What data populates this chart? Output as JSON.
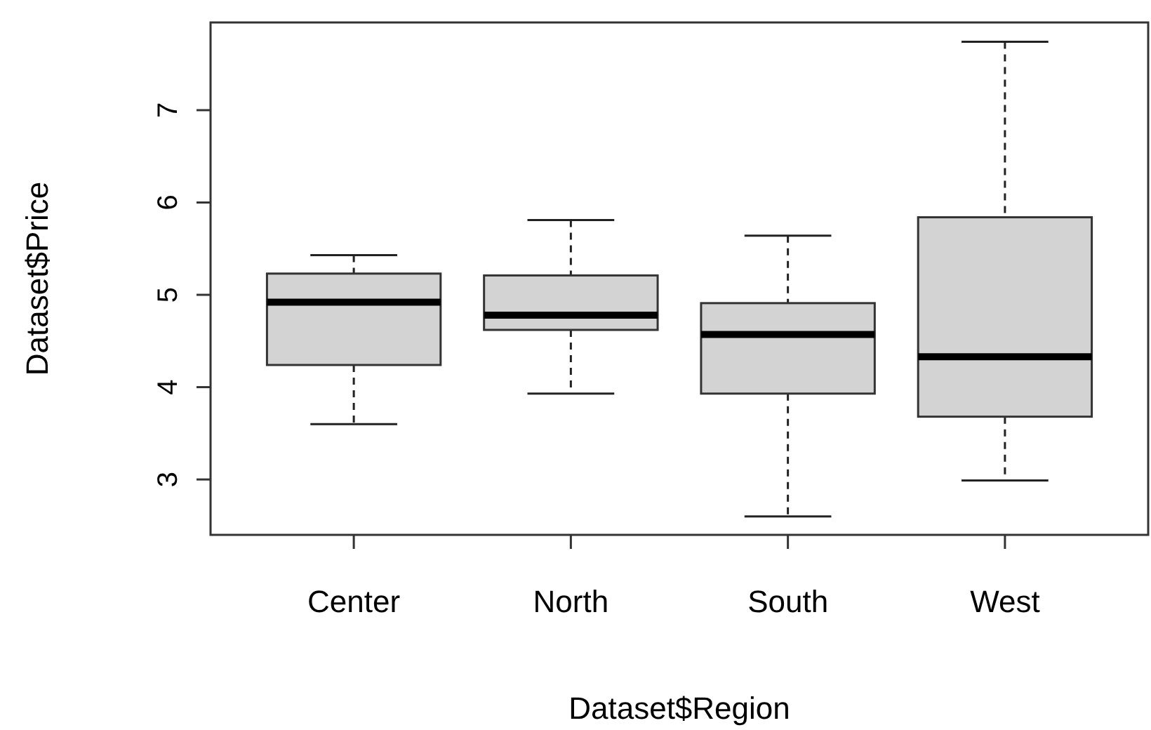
{
  "chart_data": {
    "type": "box",
    "xlabel": "Dataset$Region",
    "ylabel": "Dataset$Price",
    "categories": [
      "Center",
      "North",
      "South",
      "West"
    ],
    "color": "#d3d3d3",
    "ylim": [
      2.4,
      7.95
    ],
    "yticks": [
      3,
      4,
      5,
      6,
      7
    ],
    "grid": false,
    "boxes": [
      {
        "low": 3.6,
        "q1": 4.24,
        "median": 4.92,
        "q3": 5.23,
        "high": 5.43
      },
      {
        "low": 3.93,
        "q1": 4.62,
        "median": 4.78,
        "q3": 5.21,
        "high": 5.81
      },
      {
        "low": 2.6,
        "q1": 3.93,
        "median": 4.57,
        "q3": 4.91,
        "high": 5.64
      },
      {
        "low": 2.99,
        "q1": 3.68,
        "median": 4.33,
        "q3": 5.84,
        "high": 7.74
      }
    ]
  }
}
